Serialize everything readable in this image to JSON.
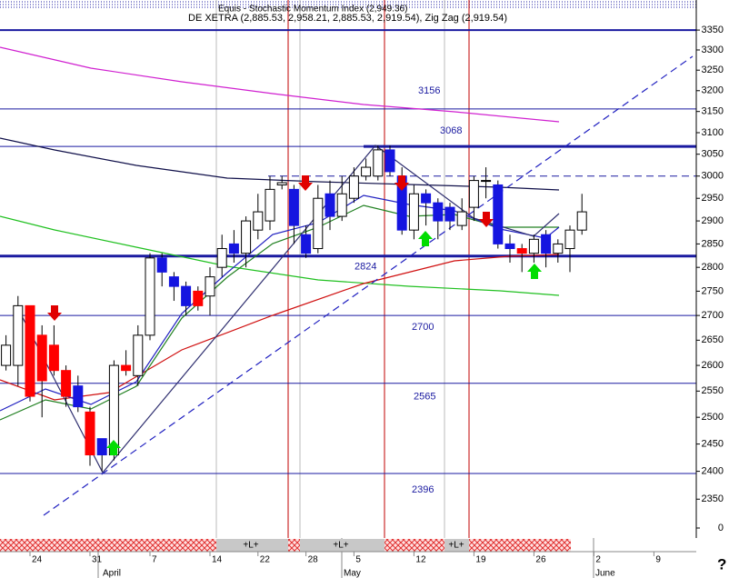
{
  "chart_data": {
    "type": "candlestick",
    "header_top": "Equis - Stochastic Momentum Index (2,949.36)",
    "header": "DE XETRA (2,885.53, 2,958.21, 2,885.53, 2,919.54), Zig Zag (2,919.54)",
    "categories": [
      null,
      null,
      "24",
      null,
      null,
      null,
      null,
      "31",
      null,
      null,
      null,
      null,
      "7",
      null,
      null,
      null,
      null,
      "14",
      null,
      null,
      null,
      "22",
      null,
      null,
      null,
      "28",
      null,
      null,
      null,
      "5",
      null,
      null,
      null,
      null,
      "12",
      null,
      null,
      null,
      null,
      "19",
      null,
      null,
      null,
      null,
      "26",
      null,
      null,
      null,
      null,
      "2",
      null,
      null,
      null,
      null,
      "9",
      null,
      null,
      null
    ],
    "months": [
      "April",
      "May",
      "June"
    ],
    "open": [
      2600,
      2600,
      2720,
      2660,
      2640,
      2590,
      2560,
      2510,
      2460,
      2430,
      2600,
      2580,
      2660,
      2820,
      2780,
      2760,
      2750,
      2740,
      2800,
      2850,
      2830,
      2880,
      2900,
      2980,
      2970,
      2870,
      2840,
      2960,
      2910,
      2950,
      3000,
      3000,
      3060,
      3000,
      2880,
      2960,
      2940,
      2930,
      2890,
      2930,
      2990,
      2980,
      2850,
      2840,
      2830,
      2870,
      2830,
      2840,
      2880,
      null,
      null,
      null,
      null,
      null,
      null,
      null,
      null,
      null
    ],
    "high": [
      2660,
      2740,
      2720,
      2680,
      2680,
      2600,
      2580,
      2520,
      2460,
      2610,
      2630,
      2680,
      2830,
      2830,
      2790,
      2770,
      2760,
      2800,
      2870,
      2880,
      2910,
      2960,
      3000,
      3000,
      2980,
      2890,
      2980,
      2990,
      3000,
      3020,
      3040,
      3070,
      3070,
      3020,
      2980,
      2970,
      2950,
      2940,
      2950,
      3000,
      3020,
      2990,
      2870,
      2850,
      2870,
      2880,
      2860,
      2890,
      2960,
      null,
      null,
      null,
      null,
      null,
      null,
      null,
      null,
      null
    ],
    "low": [
      2590,
      2560,
      2530,
      2500,
      2580,
      2520,
      2510,
      2410,
      2400,
      2420,
      2580,
      2560,
      2650,
      2760,
      2730,
      2700,
      2710,
      2700,
      2780,
      2810,
      2800,
      2860,
      2880,
      2970,
      2850,
      2820,
      2830,
      2880,
      2900,
      2940,
      2990,
      2990,
      3000,
      2870,
      2860,
      2890,
      2860,
      2880,
      2880,
      2900,
      2950,
      2840,
      2810,
      2790,
      2810,
      2800,
      2810,
      2790,
      2870,
      null,
      null,
      null,
      null,
      null,
      null,
      null,
      null,
      null
    ],
    "close": [
      2640,
      2720,
      2540,
      2570,
      2590,
      2540,
      2520,
      2430,
      2430,
      2600,
      2590,
      2660,
      2820,
      2790,
      2760,
      2720,
      2720,
      2780,
      2840,
      2830,
      2900,
      2920,
      2970,
      2985,
      2890,
      2830,
      2950,
      2910,
      2960,
      3000,
      3020,
      3060,
      3010,
      2880,
      2960,
      2940,
      2900,
      2900,
      2920,
      2990,
      2990,
      2850,
      2840,
      2830,
      2860,
      2830,
      2850,
      2880,
      2920,
      null,
      null,
      null,
      null,
      null,
      null,
      null,
      null,
      null
    ],
    "candle_colors": [
      "#ffffff",
      "#ffffff",
      "#ff0000",
      "#ff0000",
      "#ff0000",
      "#ff0000",
      "#1515e0",
      "#ff0000",
      "#1515e0",
      "#ffffff",
      "#ff0000",
      "#ffffff",
      "#ffffff",
      "#1515e0",
      "#1515e0",
      "#1515e0",
      "#ff0000",
      "#ffffff",
      "#ffffff",
      "#1515e0",
      "#ffffff",
      "#ffffff",
      "#ffffff",
      "#ffffff",
      "#1515e0",
      "#1515e0",
      "#ffffff",
      "#1515e0",
      "#ffffff",
      "#ffffff",
      "#ffffff",
      "#ffffff",
      "#1515e0",
      "#1515e0",
      "#ffffff",
      "#1515e0",
      "#1515e0",
      "#1515e0",
      "#ffffff",
      "#ffffff",
      "#ffffff",
      "#1515e0",
      "#1515e0",
      "#ff0000",
      "#ffffff",
      "#1515e0",
      "#ffffff",
      "#ffffff",
      "#ffffff",
      null,
      null,
      null,
      null,
      null,
      null,
      null,
      null,
      null
    ],
    "levels": [
      3156,
      3068,
      2824,
      2700,
      2565,
      2396
    ],
    "plain_levels": [
      3350,
      3000
    ],
    "ylim": [
      2282,
      3427
    ],
    "log_scale": true,
    "yticks": [
      2350,
      2400,
      2450,
      2500,
      2550,
      2600,
      2650,
      2700,
      2750,
      2800,
      2850,
      2900,
      2950,
      3000,
      3050,
      3100,
      3150,
      3200,
      3250,
      3300,
      3350
    ],
    "lower_panel_yticks": [
      0
    ],
    "signal_labels": [
      "+L+",
      "+L+",
      "+L+"
    ],
    "help": "?"
  }
}
